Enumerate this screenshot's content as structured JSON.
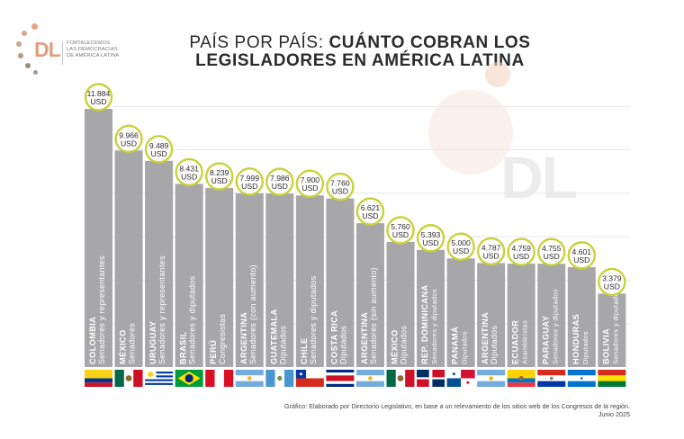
{
  "logo": {
    "mark": "DL",
    "tagline": [
      "FORTALECEMOS",
      "LAS DEMOCRACIAS",
      "DE AMÉRICA LATINA"
    ]
  },
  "watermark": "DL",
  "title": {
    "part1": "PAÍS POR PAÍS: ",
    "part2": "CUÁNTO COBRAN LOS",
    "line2": "LEGISLADORES EN AMÉRICA LATINA"
  },
  "footnote": {
    "line1": "Gráfico: Elaborado por Directorio Legislativo, en base a un relevamiento de los sitios web de los Congresos de la región.",
    "line2": "Junio 2025"
  },
  "colors": {
    "bar": "#a7a7a9",
    "bubble_border": "#c8d23a",
    "text": "#2b2b2b",
    "accent": "#e0a080"
  },
  "chart_data": {
    "type": "bar",
    "unit": "USD",
    "ylim": [
      0,
      12000
    ],
    "grid": true,
    "bars": [
      {
        "country": "COLOMBIA",
        "chamber": "Senadores y representantes",
        "value": 11884,
        "label": "11.884",
        "flag": "colombia"
      },
      {
        "country": "MÉXICO",
        "chamber": "Senadores",
        "value": 9966,
        "label": "9.966",
        "flag": "mexico"
      },
      {
        "country": "URUGUAY",
        "chamber": "Senadores y representantes",
        "value": 9489,
        "label": "9.489",
        "flag": "uruguay"
      },
      {
        "country": "BRASIL",
        "chamber": "Senadores y diputados",
        "value": 8431,
        "label": "8.431",
        "flag": "brasil"
      },
      {
        "country": "PERÚ",
        "chamber": "Congresistas",
        "value": 8239,
        "label": "8.239",
        "flag": "peru"
      },
      {
        "country": "ARGENTINA",
        "chamber": "Senadores (con aumento)",
        "value": 7999,
        "label": "7.999",
        "flag": "argentina"
      },
      {
        "country": "GUATEMALA",
        "chamber": "Diputados",
        "value": 7986,
        "label": "7.986",
        "flag": "guatemala"
      },
      {
        "country": "CHILE",
        "chamber": "Senadores y diputados",
        "value": 7900,
        "label": "7.900",
        "flag": "chile"
      },
      {
        "country": "COSTA RICA",
        "chamber": "Diputados",
        "value": 7760,
        "label": "7.760",
        "flag": "costarica"
      },
      {
        "country": "ARGENTINA",
        "chamber": "Senadores (sin aumento)",
        "value": 6621,
        "label": "6.621",
        "flag": "argentina"
      },
      {
        "country": "MÉXICO",
        "chamber": "Diputados",
        "value": 5760,
        "label": "5.760",
        "flag": "mexico"
      },
      {
        "country": "REP. DOMINICANA",
        "chamber": "Senadores y diputados",
        "value": 5393,
        "label": "5.393",
        "flag": "dominicana"
      },
      {
        "country": "PANAMÁ",
        "chamber": "Diputados",
        "value": 5000,
        "label": "5.000",
        "flag": "panama"
      },
      {
        "country": "ARGENTINA",
        "chamber": "Diputados",
        "value": 4787,
        "label": "4.787",
        "flag": "argentina"
      },
      {
        "country": "ECUADOR",
        "chamber": "Asambleístas",
        "value": 4759,
        "label": "4.759",
        "flag": "ecuador"
      },
      {
        "country": "PARAGUAY",
        "chamber": "Senadores y diputados",
        "value": 4755,
        "label": "4.755",
        "flag": "paraguay"
      },
      {
        "country": "HONDURAS",
        "chamber": "Diputados",
        "value": 4601,
        "label": "4.601",
        "flag": "honduras"
      },
      {
        "country": "BOLIVIA",
        "chamber": "Senadores y diputados",
        "value": 3379,
        "label": "3.379",
        "flag": "bolivia"
      }
    ]
  }
}
